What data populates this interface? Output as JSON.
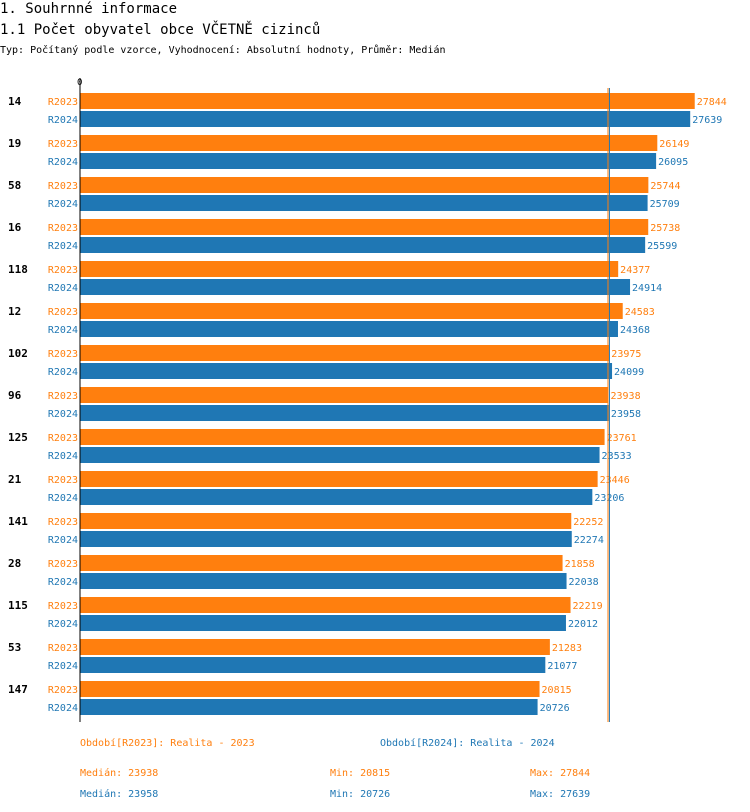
{
  "header": {
    "title": "1. Souhrnné informace",
    "subtitle": "1.1 Počet obyvatel obce VČETNĚ cizinců",
    "type_line": "Typ: Počítaný podle vzorce, Vyhodnocení: Absolutní hodnoty, Průměr: Medián"
  },
  "colors": {
    "r2023": "#ff7f0e",
    "r2024": "#1f77b4",
    "median_2023": "#ff7f0e",
    "median_2024": "#1f77b4"
  },
  "chart_data": {
    "type": "bar",
    "orientation": "horizontal",
    "axis_zero_label": "0",
    "xlim": [
      0,
      28400
    ],
    "series_names": [
      "R2023",
      "R2024"
    ],
    "categories": [
      "14",
      "19",
      "58",
      "16",
      "118",
      "12",
      "102",
      "96",
      "125",
      "21",
      "141",
      "28",
      "115",
      "53",
      "147"
    ],
    "series": [
      {
        "name": "R2023",
        "values": [
          27844,
          26149,
          25744,
          25738,
          24377,
          24583,
          23975,
          23938,
          23761,
          23446,
          22252,
          21858,
          22219,
          21283,
          20815
        ]
      },
      {
        "name": "R2024",
        "values": [
          27639,
          26095,
          25709,
          25599,
          24914,
          24368,
          24099,
          23958,
          23533,
          23206,
          22274,
          22038,
          22012,
          21077,
          20726
        ]
      }
    ],
    "medians": [
      23938,
      23958
    ]
  },
  "legend": {
    "r2023": "Období[R2023]: Realita - 2023",
    "r2024": "Období[R2024]: Realita - 2024"
  },
  "stats": {
    "r2023": {
      "median": "Medián: 23938",
      "min": "Min: 20815",
      "max": "Max: 27844"
    },
    "r2024": {
      "median": "Medián: 23958",
      "min": "Min: 20726",
      "max": "Max: 27639"
    }
  }
}
